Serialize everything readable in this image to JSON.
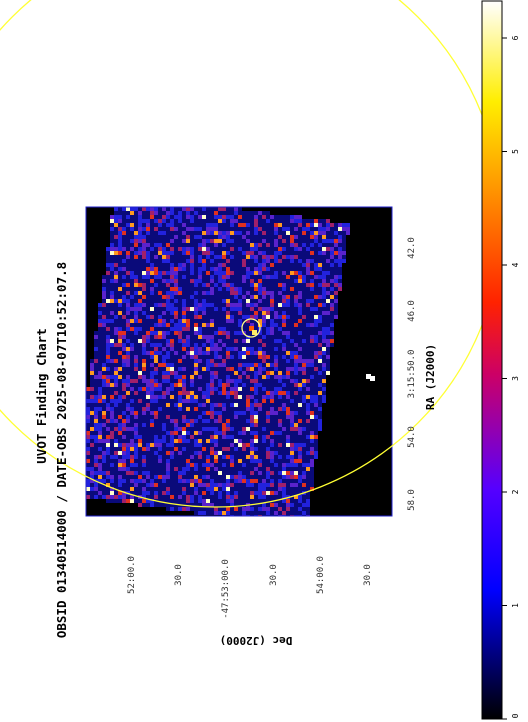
{
  "title": "UVOT Finding Chart",
  "subtitle": "OBSID 01340514000 / DATE-OBS 2025-08-07T10:52:07.8",
  "chart_data": {
    "type": "heatmap",
    "title": "UVOT Finding Chart",
    "subtitle": "OBSID 01340514000 / DATE-OBS 2025-08-07T10:52:07.8",
    "xlabel": "RA (J2000)",
    "ylabel": "Dec (J2000)",
    "ra_ticks": [
      "58.0",
      "54.0",
      "3:15:50.0",
      "46.0",
      "42.0"
    ],
    "dec_ticks": [
      "52:00.0",
      "30.0",
      "-47:53:00.0",
      "30.0",
      "54:00.0",
      "30.0"
    ],
    "colorbar": {
      "colormap": "heat (black-blue-red-yellow-white)",
      "ticks": [
        "0",
        "1",
        "2",
        "3",
        "4",
        "5",
        "6"
      ],
      "range": [
        0,
        6
      ]
    },
    "markers": [
      {
        "shape": "circle",
        "color": "#ffff66",
        "label": "source region"
      },
      {
        "shape": "circle",
        "color": "#ffff00",
        "label": "error circle (large)"
      }
    ],
    "grid": false
  }
}
